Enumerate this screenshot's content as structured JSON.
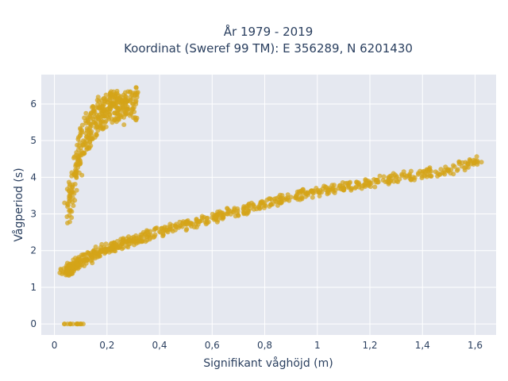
{
  "chart_data": {
    "type": "scatter",
    "title_line1": "År 1979 - 2019",
    "title_line2": "Koordinat (Sweref 99 TM): E 356289, N 6201430",
    "xlabel": "Signifikant våghöjd (m)",
    "ylabel": "Vågperiod (s)",
    "xlim": [
      -0.05,
      1.68
    ],
    "ylim": [
      -0.3,
      6.8
    ],
    "x_ticks": [
      0,
      0.2,
      0.4,
      0.6,
      0.8,
      1,
      1.2,
      1.4,
      1.6
    ],
    "x_tick_labels": [
      "0",
      "0,2",
      "0,4",
      "0,6",
      "0,8",
      "1",
      "1,2",
      "1,4",
      "1,6"
    ],
    "y_ticks": [
      0,
      1,
      2,
      3,
      4,
      5,
      6
    ],
    "y_tick_labels": [
      "0",
      "1",
      "2",
      "3",
      "4",
      "5",
      "6"
    ],
    "marker_color": "#d4a418",
    "plot_bgcolor": "#e5e8f0",
    "grid": true,
    "series": [
      {
        "x": [
          0.04,
          0.05,
          0.06,
          0.07,
          0.08,
          0.09,
          0.1,
          0.12,
          0.14,
          0.16,
          0.18,
          0.2,
          0.22,
          0.24,
          0.26,
          0.28,
          0.3,
          0.33,
          0.36,
          0.4,
          0.44,
          0.48,
          0.52,
          0.56,
          0.6,
          0.64,
          0.68,
          0.72,
          0.76,
          0.8,
          0.84,
          0.88,
          0.92,
          0.96,
          1.0,
          1.04,
          1.08,
          1.12,
          1.16,
          1.2,
          1.25,
          1.3,
          1.35,
          1.4,
          1.45,
          1.5,
          1.55,
          1.6,
          0.05,
          0.07,
          0.09,
          0.1
        ],
        "y": [
          1.4,
          1.45,
          1.5,
          1.55,
          1.6,
          1.65,
          1.7,
          1.78,
          1.85,
          1.92,
          1.98,
          2.05,
          2.1,
          2.15,
          2.2,
          2.25,
          2.3,
          2.37,
          2.43,
          2.52,
          2.6,
          2.68,
          2.75,
          2.82,
          2.9,
          2.98,
          3.05,
          3.12,
          3.2,
          3.28,
          3.35,
          3.42,
          3.5,
          3.55,
          3.6,
          3.65,
          3.7,
          3.75,
          3.8,
          3.85,
          3.92,
          4.0,
          4.05,
          4.1,
          4.15,
          4.2,
          4.3,
          4.45,
          0,
          0,
          0,
          0
        ]
      },
      {
        "x": [
          0.05,
          0.06,
          0.07,
          0.08,
          0.09,
          0.1,
          0.11,
          0.12,
          0.13,
          0.14,
          0.15,
          0.16,
          0.17,
          0.18,
          0.19,
          0.2,
          0.21,
          0.22,
          0.23,
          0.24,
          0.25,
          0.26,
          0.27,
          0.28,
          0.3,
          0.31
        ],
        "y": [
          3.2,
          3.5,
          3.8,
          4.2,
          4.5,
          4.8,
          5.0,
          5.2,
          5.3,
          5.4,
          5.5,
          5.6,
          5.7,
          5.75,
          5.8,
          5.85,
          5.9,
          5.95,
          6.0,
          5.9,
          5.8,
          5.9,
          6.0,
          6.1,
          6.0,
          6.0
        ]
      }
    ]
  }
}
